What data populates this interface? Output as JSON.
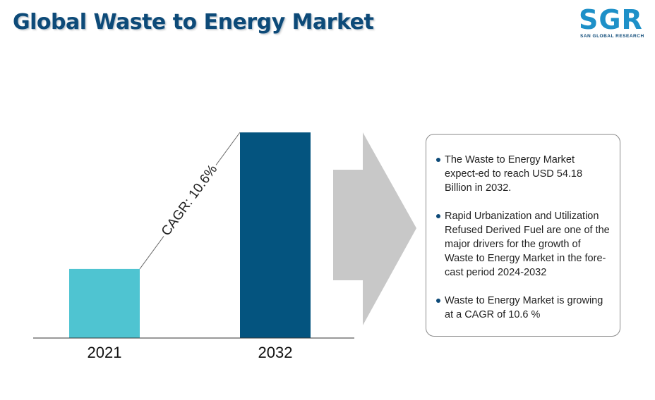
{
  "header": {
    "title": "Global Waste to Energy Market"
  },
  "logo": {
    "mark": "SGR",
    "subtitle": "SAN GLOBAL RESEARCH"
  },
  "colors": {
    "bar_2021": "#4fc4d1",
    "bar_2032": "#04547f",
    "title": "#0d4a78",
    "arrow": "#c8c8c8"
  },
  "chart_data": {
    "type": "bar",
    "categories": [
      "2021",
      "2032"
    ],
    "values": [
      18.2,
      54.18
    ],
    "ylim": [
      0,
      54.18
    ],
    "annotation": "CAGR: 10.6%",
    "grid": false
  },
  "info": {
    "bullets": [
      "The Waste to Energy Market expect-ed to reach USD 54.18 Billion in 2032.",
      "Rapid Urbanization and Utilization Refused Derived Fuel are one of the major drivers for the growth of Waste to Energy Market in the fore-cast period 2024-2032",
      "Waste to Energy Market is growing at a CAGR of 10.6 %"
    ]
  }
}
